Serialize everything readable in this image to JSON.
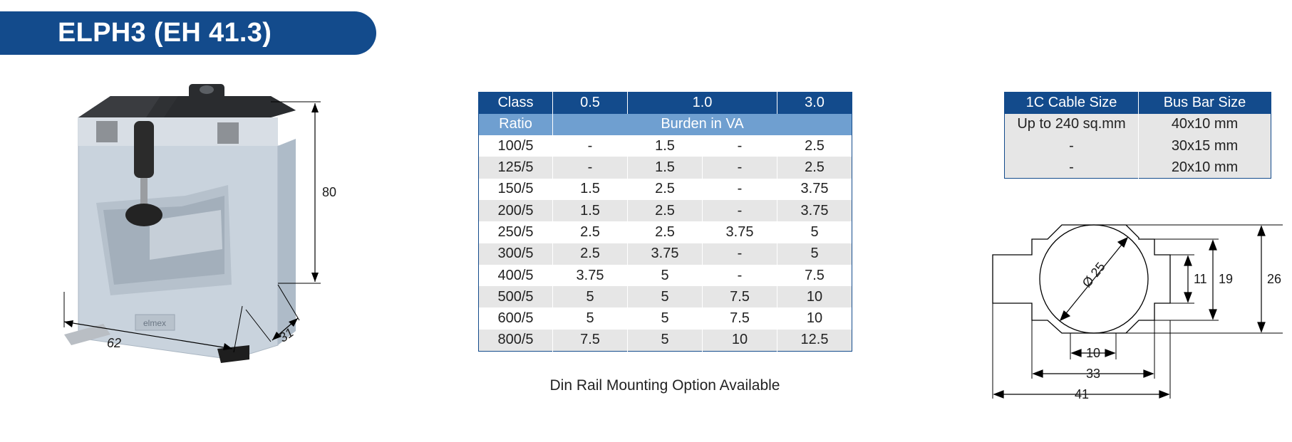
{
  "header": {
    "title": "ELPH3 (EH 41.3)"
  },
  "product": {
    "dimensions": {
      "height": "80",
      "width": "62",
      "depth": "31"
    },
    "label_markings": [
      "elmex"
    ]
  },
  "ratio_table": {
    "header_row1": [
      "Class",
      "0.5",
      "1.0",
      "3.0"
    ],
    "header_row2": [
      "Ratio",
      "Burden in VA"
    ],
    "rows": [
      [
        "100/5",
        "-",
        "1.5",
        "-",
        "2.5"
      ],
      [
        "125/5",
        "-",
        "1.5",
        "-",
        "2.5"
      ],
      [
        "150/5",
        "1.5",
        "2.5",
        "-",
        "3.75"
      ],
      [
        "200/5",
        "1.5",
        "2.5",
        "-",
        "3.75"
      ],
      [
        "250/5",
        "2.5",
        "2.5",
        "3.75",
        "5"
      ],
      [
        "300/5",
        "2.5",
        "3.75",
        "-",
        "5"
      ],
      [
        "400/5",
        "3.75",
        "5",
        "-",
        "7.5"
      ],
      [
        "500/5",
        "5",
        "5",
        "7.5",
        "10"
      ],
      [
        "600/5",
        "5",
        "5",
        "7.5",
        "10"
      ],
      [
        "800/5",
        "7.5",
        "5",
        "10",
        "12.5"
      ]
    ]
  },
  "din_note": "Din Rail Mounting Option Available",
  "cable_table": {
    "headers": [
      "1C Cable Size",
      "Bus Bar Size"
    ],
    "rows": [
      [
        "Up to 240 sq.mm",
        "40x10 mm"
      ],
      [
        "-",
        "30x15 mm"
      ],
      [
        "-",
        "20x10 mm"
      ]
    ]
  },
  "drawing": {
    "diameter": "Ø 25",
    "dim_11": "11",
    "dim_19": "19",
    "dim_26": "26",
    "dim_10": "10",
    "dim_33": "33",
    "dim_41": "41"
  },
  "colors": {
    "primary": "#134b8c",
    "secondary": "#6f9fd0",
    "row_alt": "#e6e6e6"
  }
}
